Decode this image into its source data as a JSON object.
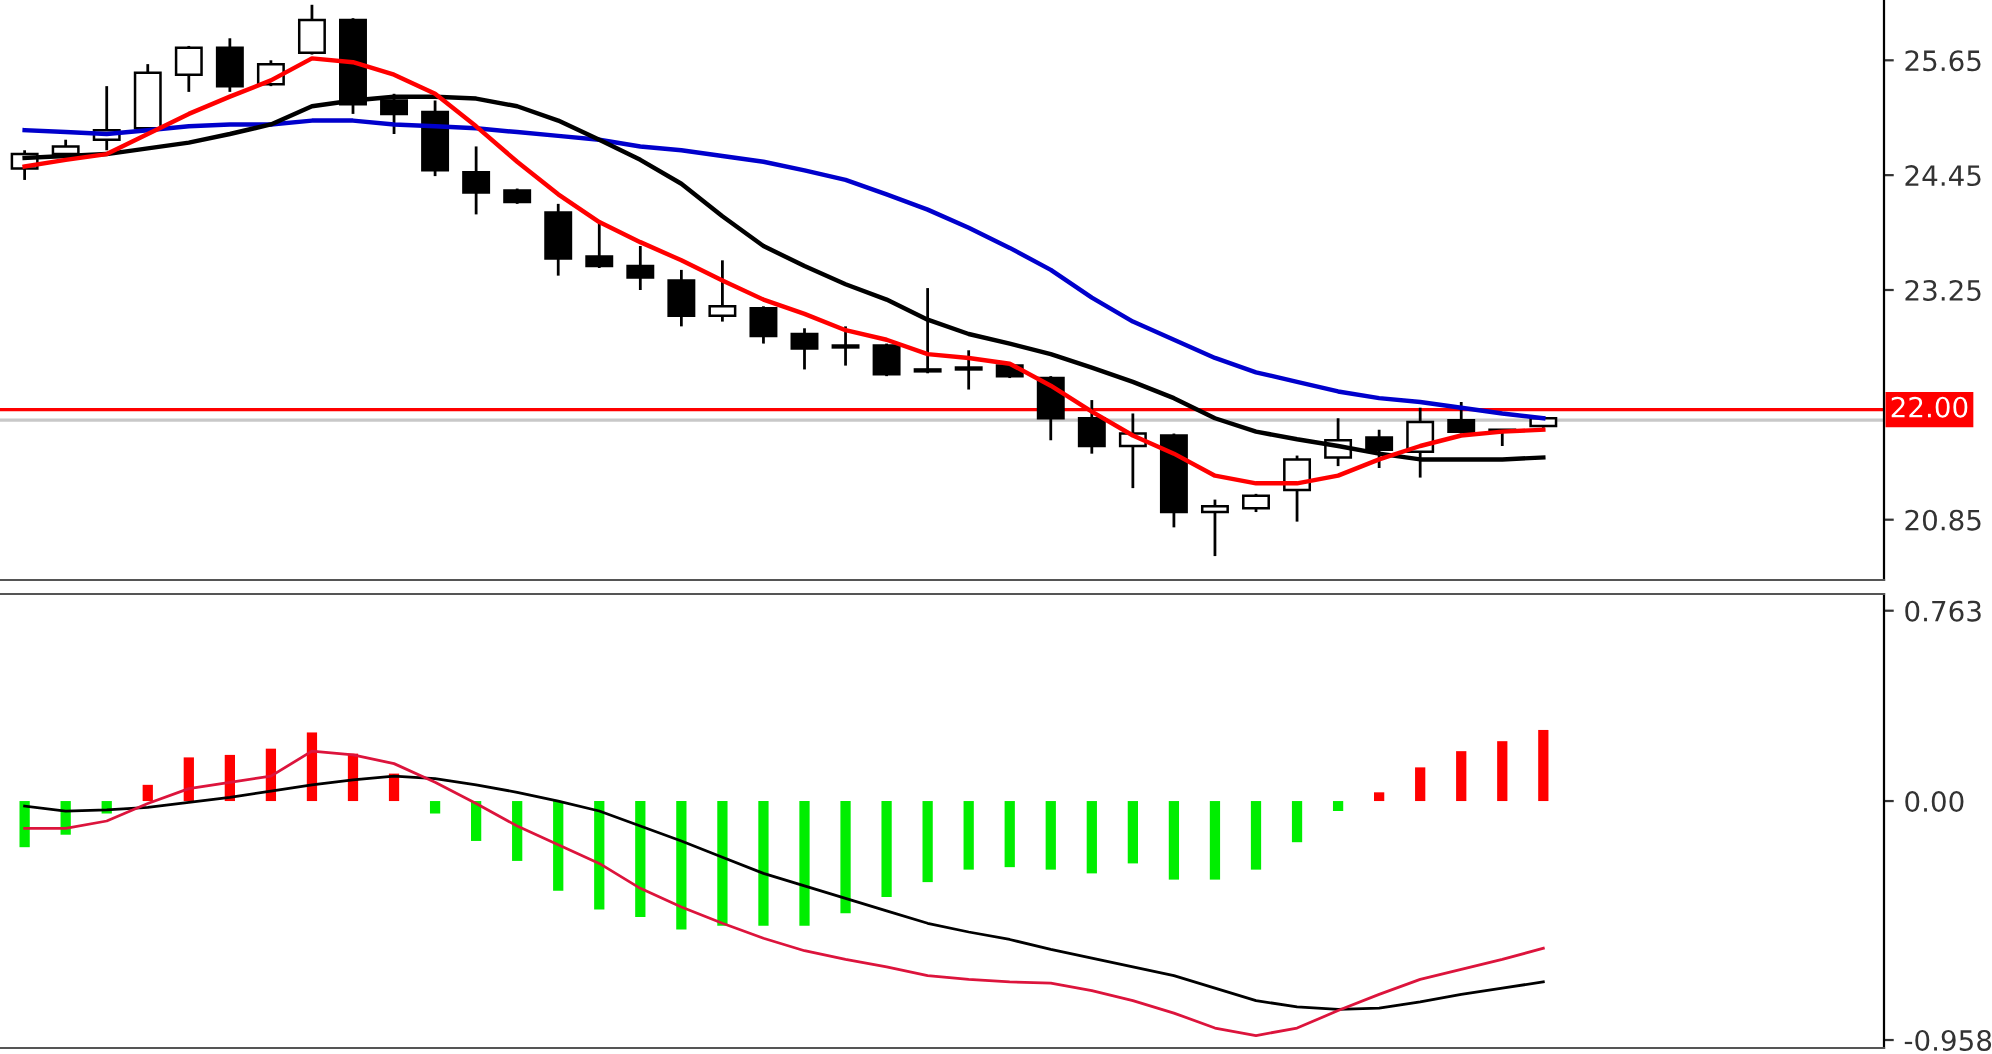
{
  "chart_data": [
    {
      "type": "candlestick",
      "categories": [
        null,
        null,
        null,
        null,
        null,
        null,
        null,
        null,
        null,
        null,
        null,
        null,
        null,
        null,
        null,
        null,
        null,
        null,
        null,
        null,
        null,
        null,
        null,
        null,
        null,
        null,
        null,
        null,
        null,
        null,
        null,
        null,
        null,
        null,
        null,
        null,
        null,
        null
      ],
      "ohlc": [
        [
          24.52,
          24.71,
          24.4,
          24.67
        ],
        [
          24.67,
          24.82,
          24.65,
          24.75
        ],
        [
          24.82,
          25.38,
          24.71,
          24.92
        ],
        [
          24.94,
          25.61,
          24.92,
          25.52
        ],
        [
          25.5,
          25.8,
          25.32,
          25.78
        ],
        [
          25.78,
          25.88,
          25.32,
          25.38
        ],
        [
          25.4,
          25.65,
          25.38,
          25.61
        ],
        [
          25.73,
          26.23,
          25.71,
          26.07
        ],
        [
          26.07,
          26.09,
          25.09,
          25.19
        ],
        [
          25.23,
          25.3,
          24.88,
          25.09
        ],
        [
          25.11,
          25.23,
          24.44,
          24.5
        ],
        [
          24.48,
          24.75,
          24.04,
          24.27
        ],
        [
          24.29,
          24.31,
          24.15,
          24.17
        ],
        [
          24.06,
          24.15,
          23.4,
          23.58
        ],
        [
          23.6,
          23.94,
          23.48,
          23.5
        ],
        [
          23.5,
          23.71,
          23.25,
          23.38
        ],
        [
          23.35,
          23.46,
          22.87,
          22.98
        ],
        [
          22.98,
          23.56,
          22.92,
          23.08
        ],
        [
          23.06,
          23.08,
          22.69,
          22.77
        ],
        [
          22.79,
          22.85,
          22.42,
          22.64
        ],
        [
          22.67,
          22.87,
          22.46,
          22.65
        ],
        [
          22.67,
          22.69,
          22.35,
          22.37
        ],
        [
          22.42,
          23.27,
          22.38,
          22.4
        ],
        [
          22.44,
          22.62,
          22.21,
          22.42
        ],
        [
          22.46,
          22.48,
          22.33,
          22.35
        ],
        [
          22.33,
          22.35,
          21.68,
          21.91
        ],
        [
          21.91,
          22.1,
          21.54,
          21.62
        ],
        [
          21.62,
          21.96,
          21.18,
          21.75
        ],
        [
          21.73,
          21.75,
          20.77,
          20.93
        ],
        [
          20.93,
          21.06,
          20.47,
          20.99
        ],
        [
          20.97,
          21.12,
          20.93,
          21.1
        ],
        [
          21.16,
          21.52,
          20.83,
          21.48
        ],
        [
          21.5,
          21.91,
          21.41,
          21.68
        ],
        [
          21.71,
          21.79,
          21.39,
          21.58
        ],
        [
          21.56,
          22.02,
          21.29,
          21.87
        ],
        [
          21.89,
          22.08,
          21.75,
          21.77
        ],
        [
          21.77,
          21.79,
          21.62,
          21.79
        ],
        [
          21.83,
          21.93,
          21.81,
          21.91
        ]
      ],
      "series": [
        {
          "type": "line",
          "color": "#0000cc",
          "values": [
            24.92,
            24.9,
            24.88,
            24.92,
            24.96,
            24.98,
            24.98,
            25.02,
            25.02,
            24.98,
            24.96,
            24.94,
            24.9,
            24.86,
            24.82,
            24.75,
            24.71,
            24.65,
            24.59,
            24.5,
            24.4,
            24.25,
            24.09,
            23.9,
            23.69,
            23.46,
            23.17,
            22.92,
            22.73,
            22.54,
            22.39,
            22.29,
            22.19,
            22.12,
            22.08,
            22.02,
            21.96,
            21.91
          ]
        },
        {
          "type": "line",
          "color": "#000000",
          "values": [
            24.63,
            24.65,
            24.67,
            24.73,
            24.79,
            24.88,
            24.98,
            25.17,
            25.23,
            25.27,
            25.27,
            25.25,
            25.17,
            25.02,
            24.82,
            24.61,
            24.36,
            24.02,
            23.71,
            23.5,
            23.31,
            23.15,
            22.94,
            22.79,
            22.69,
            22.58,
            22.44,
            22.29,
            22.12,
            21.91,
            21.77,
            21.69,
            21.62,
            21.54,
            21.48,
            21.48,
            21.48,
            21.5
          ]
        },
        {
          "type": "line",
          "color": "#ff0000",
          "values": [
            24.54,
            24.61,
            24.67,
            24.88,
            25.09,
            25.27,
            25.44,
            25.67,
            25.63,
            25.5,
            25.3,
            24.96,
            24.59,
            24.25,
            23.96,
            23.75,
            23.56,
            23.35,
            23.15,
            23.0,
            22.83,
            22.73,
            22.58,
            22.54,
            22.48,
            22.25,
            21.98,
            21.73,
            21.54,
            21.31,
            21.23,
            21.23,
            21.31,
            21.48,
            21.62,
            21.73,
            21.77,
            21.79
          ]
        }
      ],
      "ylim": [
        20.22,
        26.28
      ],
      "yticks": [
        20.85,
        23.25,
        24.45,
        25.65
      ],
      "ref_lines": [
        {
          "axis": "y",
          "value": 21.89,
          "label": null,
          "color": "#c8c8c8"
        },
        {
          "axis": "y",
          "value": 22.0,
          "label": "22.00",
          "color": "#ff0000"
        }
      ],
      "tick_labels": "y",
      "grid": false
    },
    {
      "type": "bar",
      "categories": [
        null,
        null,
        null,
        null,
        null,
        null,
        null,
        null,
        null,
        null,
        null,
        null,
        null,
        null,
        null,
        null,
        null,
        null,
        null,
        null,
        null,
        null,
        null,
        null,
        null,
        null,
        null,
        null,
        null,
        null,
        null,
        null,
        null,
        null,
        null,
        null,
        null,
        null
      ],
      "series": [
        {
          "type": "bar",
          "colors": [
            "#00ee00",
            "#00ee00",
            "#00ee00",
            "#ff0000",
            "#ff0000",
            "#ff0000",
            "#ff0000",
            "#ff0000",
            "#ff0000",
            "#ff0000",
            "#00ee00",
            "#00ee00",
            "#00ee00",
            "#00ee00",
            "#00ee00",
            "#00ee00",
            "#00ee00",
            "#00ee00",
            "#00ee00",
            "#00ee00",
            "#00ee00",
            "#00ee00",
            "#00ee00",
            "#00ee00",
            "#00ee00",
            "#00ee00",
            "#00ee00",
            "#00ee00",
            "#00ee00",
            "#00ee00",
            "#00ee00",
            "#00ee00",
            "#00ee00",
            "#ff0000",
            "#ff0000",
            "#ff0000",
            "#ff0000",
            "#ff0000"
          ],
          "values": [
            -0.185,
            -0.135,
            -0.05,
            0.065,
            0.175,
            0.185,
            0.21,
            0.275,
            0.19,
            0.11,
            -0.05,
            -0.16,
            -0.24,
            -0.36,
            -0.435,
            -0.465,
            -0.515,
            -0.5,
            -0.5,
            -0.5,
            -0.45,
            -0.385,
            -0.325,
            -0.275,
            -0.265,
            -0.275,
            -0.29,
            -0.25,
            -0.315,
            -0.315,
            -0.275,
            -0.165,
            -0.04,
            0.035,
            0.135,
            0.2,
            0.24,
            0.285
          ]
        },
        {
          "type": "line",
          "color": "#000000",
          "values": [
            -0.02,
            -0.04,
            -0.035,
            -0.025,
            -0.005,
            0.015,
            0.04,
            0.065,
            0.085,
            0.1,
            0.09,
            0.065,
            0.035,
            0,
            -0.04,
            -0.1,
            -0.16,
            -0.225,
            -0.29,
            -0.34,
            -0.39,
            -0.44,
            -0.49,
            -0.525,
            -0.555,
            -0.595,
            -0.63,
            -0.665,
            -0.7,
            -0.75,
            -0.8,
            -0.825,
            -0.835,
            -0.83,
            -0.805,
            -0.775,
            -0.75,
            -0.725
          ]
        },
        {
          "type": "line",
          "color": "#dc143c",
          "values": [
            -0.11,
            -0.11,
            -0.08,
            -0.01,
            0.05,
            0.075,
            0.1,
            0.2,
            0.185,
            0.15,
            0.075,
            -0.01,
            -0.1,
            -0.175,
            -0.25,
            -0.35,
            -0.425,
            -0.49,
            -0.55,
            -0.6,
            -0.635,
            -0.665,
            -0.7,
            -0.715,
            -0.725,
            -0.73,
            -0.76,
            -0.8,
            -0.85,
            -0.91,
            -0.94,
            -0.91,
            -0.84,
            -0.775,
            -0.715,
            -0.675,
            -0.635,
            -0.59
          ]
        }
      ],
      "ylim": [
        -0.99,
        0.83
      ],
      "yticks": [
        0.763,
        {
          "value": 0,
          "label": "0.00"
        },
        {
          "value": -0.958,
          "label": "-0.958"
        }
      ],
      "tick_labels": "y",
      "grid": false
    }
  ]
}
